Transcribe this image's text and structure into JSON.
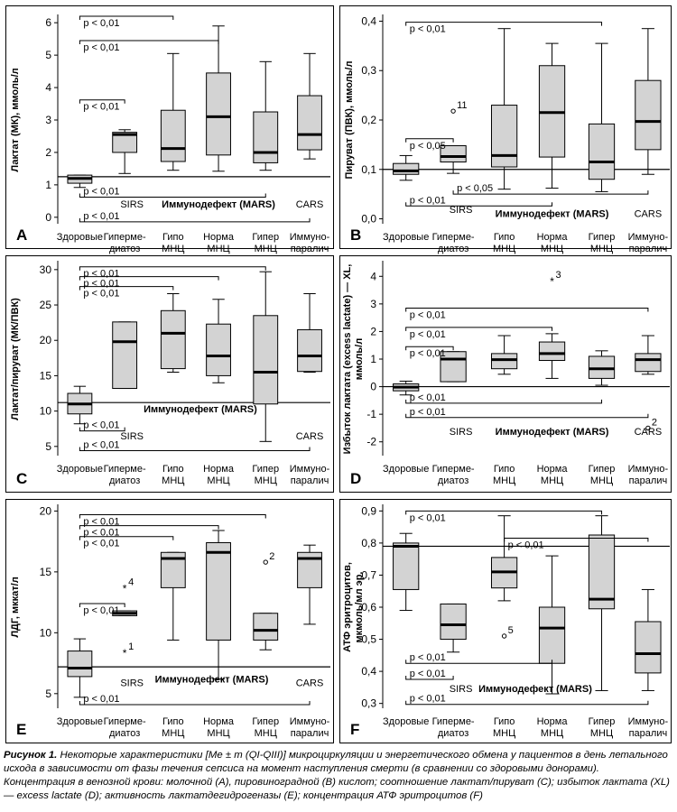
{
  "colors": {
    "box_fill": "#d3d3d3",
    "stroke": "#000000",
    "background": "#ffffff"
  },
  "caption": {
    "title": "Рисунок 1.",
    "text": "Некоторые характеристики [Me ± m (QI-QIII)] микроциркуляции и энергетического обмена у пациентов в день летального исхода в зависимости от фазы течения сепсиса на момент наступления смерти (в сравнении со здоровыми донорами). Концентрация в венозной крови: молочной (А), пировиноградной (В) кислот; соотношение лактат/пируват (С); избыток лактата (XL) — excess lactate (D); активность лактатдегидрогеназы (E); концентрация АТФ эритроцитов (F)"
  },
  "chart_data": [
    {
      "panel": "A",
      "type": "boxplot",
      "ylabel": "Лактат (МК), ммоль/л",
      "ylim": [
        -0.2,
        6.2
      ],
      "yticks": [
        0,
        1,
        2,
        3,
        4,
        5,
        6
      ],
      "categories": [
        "Здоровые",
        "Гиперме-\nдиатоз",
        "Гипо\nМНЦ",
        "Норма\nМНЦ",
        "Гипер\nМНЦ",
        "Иммуно-\nпаралич"
      ],
      "boxes": [
        {
          "whislo": 0.92,
          "q1": 1.05,
          "med": 1.2,
          "q3": 1.3,
          "whishi": 1.3
        },
        {
          "whislo": 1.35,
          "q1": 2.0,
          "med": 2.55,
          "q3": 2.62,
          "whishi": 2.7
        },
        {
          "whislo": 1.45,
          "q1": 1.72,
          "med": 2.12,
          "q3": 3.3,
          "whishi": 5.05
        },
        {
          "whislo": 1.42,
          "q1": 1.92,
          "med": 3.1,
          "q3": 4.45,
          "whishi": 5.9
        },
        {
          "whislo": 1.45,
          "q1": 1.68,
          "med": 2.0,
          "q3": 3.25,
          "whishi": 4.8
        },
        {
          "whislo": 1.8,
          "q1": 2.08,
          "med": 2.55,
          "q3": 3.75,
          "whishi": 5.05
        }
      ],
      "reference_line": 1.25,
      "outliers": [],
      "annotations": [
        {
          "text": "p < 0,01",
          "from": 1,
          "to": 3,
          "y": 6.2,
          "tick": "down"
        },
        {
          "text": "p < 0,01",
          "from": 1,
          "to": 4,
          "y": 5.45,
          "tick": "down"
        },
        {
          "text": "p < 0,01",
          "from": 1,
          "to": 2,
          "y": 3.62,
          "tick": "down"
        },
        {
          "text": "p < 0,01",
          "from": 1,
          "to": 5,
          "y": 0.62,
          "tick": "up"
        },
        {
          "text": "p < 0,01",
          "from": 1,
          "to": 6,
          "y": -0.14,
          "tick": "up"
        }
      ],
      "group_labels": [
        {
          "text": "SIRS",
          "x": 2.15,
          "y": 0.3,
          "bold": false
        },
        {
          "text": "Иммунодефект (MARS)",
          "x": 4.0,
          "y": 0.3,
          "bold": true
        },
        {
          "text": "CARS",
          "x": 6.0,
          "y": 0.3,
          "bold": false
        }
      ]
    },
    {
      "panel": "B",
      "type": "boxplot",
      "ylabel": "Пируват (ПВК), ммоль/л",
      "ylim": [
        -0.01,
        0.41
      ],
      "yticks": [
        0.0,
        0.1,
        0.2,
        0.3,
        0.4
      ],
      "ytick_labels": [
        "0,0",
        "0,1",
        "0,2",
        "0,3",
        "0,4"
      ],
      "categories": [
        "Здоровые",
        "Гиперме-\nдиатоз",
        "Гипо\nМНЦ",
        "Норма\nМНЦ",
        "Гипер\nМНЦ",
        "Иммуно-\nпаралич"
      ],
      "boxes": [
        {
          "whislo": 0.078,
          "q1": 0.09,
          "med": 0.097,
          "q3": 0.112,
          "whishi": 0.128
        },
        {
          "whislo": 0.092,
          "q1": 0.115,
          "med": 0.126,
          "q3": 0.148,
          "whishi": 0.148
        },
        {
          "whislo": 0.06,
          "q1": 0.105,
          "med": 0.128,
          "q3": 0.23,
          "whishi": 0.385
        },
        {
          "whislo": 0.062,
          "q1": 0.125,
          "med": 0.215,
          "q3": 0.31,
          "whishi": 0.355
        },
        {
          "whislo": 0.055,
          "q1": 0.08,
          "med": 0.115,
          "q3": 0.192,
          "whishi": 0.355
        },
        {
          "whislo": 0.09,
          "q1": 0.14,
          "med": 0.197,
          "q3": 0.28,
          "whishi": 0.385
        }
      ],
      "reference_line": 0.1,
      "outliers": [
        {
          "x": 2,
          "y": 0.218,
          "label": "11",
          "marker": "o"
        }
      ],
      "annotations": [
        {
          "text": "p < 0,01",
          "from": 1,
          "to": 5,
          "y": 0.398,
          "tick": "down"
        },
        {
          "text": "p < 0,05",
          "from": 1,
          "to": 2,
          "y": 0.162,
          "tick": "down"
        },
        {
          "text": "p < 0,05",
          "from": 2,
          "to": 6,
          "y": 0.05,
          "tick": "up"
        },
        {
          "text": "p < 0,01",
          "from": 1,
          "to": 4,
          "y": 0.026,
          "tick": "up"
        }
      ],
      "group_labels": [
        {
          "text": "SIRS",
          "x": 2.15,
          "y": 0.012,
          "bold": false
        },
        {
          "text": "Иммунодефект (MARS)",
          "x": 4.0,
          "y": 0.004,
          "bold": true
        },
        {
          "text": "CARS",
          "x": 6.0,
          "y": 0.004,
          "bold": false
        }
      ]
    },
    {
      "panel": "C",
      "type": "boxplot",
      "ylabel": "Лактат/пируват (МК/ПВК)",
      "ylim": [
        3.7,
        31
      ],
      "yticks": [
        5,
        10,
        15,
        20,
        25,
        30
      ],
      "categories": [
        "Здоровые",
        "Гиперме-\nдиатоз",
        "Гипо\nМНЦ",
        "Норма\nМНЦ",
        "Гипер\nМНЦ",
        "Иммуно-\nпаралич"
      ],
      "boxes": [
        {
          "whislo": 8.2,
          "q1": 9.6,
          "med": 11.0,
          "q3": 12.5,
          "whishi": 13.5
        },
        {
          "whislo": 13.2,
          "q1": 13.2,
          "med": 19.8,
          "q3": 22.6,
          "whishi": 22.6
        },
        {
          "whislo": 15.5,
          "q1": 16.0,
          "med": 21.0,
          "q3": 24.2,
          "whishi": 26.6
        },
        {
          "whislo": 14.0,
          "q1": 15.0,
          "med": 17.8,
          "q3": 22.3,
          "whishi": 25.8
        },
        {
          "whislo": 5.7,
          "q1": 11.0,
          "med": 15.5,
          "q3": 23.5,
          "whishi": 29.7
        },
        {
          "whislo": 15.5,
          "q1": 15.6,
          "med": 17.8,
          "q3": 21.5,
          "whishi": 26.6
        }
      ],
      "reference_line": 11.2,
      "outliers": [],
      "annotations": [
        {
          "text": "p < 0,01",
          "from": 1,
          "to": 5,
          "y": 30.4,
          "tick": "down"
        },
        {
          "text": "p < 0,01",
          "from": 1,
          "to": 4,
          "y": 29.0,
          "tick": "down"
        },
        {
          "text": "p < 0,01",
          "from": 1,
          "to": 3,
          "y": 27.6,
          "tick": "down"
        },
        {
          "text": "p < 0,01",
          "from": 1,
          "to": 2,
          "y": 7.2,
          "tick": "up"
        },
        {
          "text": "p < 0,01",
          "from": 1,
          "to": 6,
          "y": 4.4,
          "tick": "up"
        }
      ],
      "group_labels": [
        {
          "text": "SIRS",
          "x": 2.15,
          "y": 6.0,
          "bold": false
        },
        {
          "text": "Иммунодефект (MARS)",
          "x": 3.6,
          "y": 9.8,
          "bold": true
        },
        {
          "text": "CARS",
          "x": 6.0,
          "y": 6.0,
          "bold": false
        }
      ]
    },
    {
      "panel": "D",
      "type": "boxplot",
      "ylabel": "Избыток лактата (excess lactate) — XL,\nммоль/л",
      "ylim": [
        -2.5,
        4.5
      ],
      "yticks": [
        -2,
        -1,
        0,
        1,
        2,
        3,
        4
      ],
      "categories": [
        "Здоровые",
        "Гиперме-\nдиатоз",
        "Гипо\nМНЦ",
        "Норма\nМНЦ",
        "Гипер\nМНЦ",
        "Иммуно-\nпаралич"
      ],
      "boxes": [
        {
          "whislo": -0.3,
          "q1": -0.15,
          "med": -0.02,
          "q3": 0.1,
          "whishi": 0.2
        },
        {
          "whislo": 0.18,
          "q1": 0.18,
          "med": 1.0,
          "q3": 1.27,
          "whishi": 1.27
        },
        {
          "whislo": 0.45,
          "q1": 0.65,
          "med": 0.98,
          "q3": 1.2,
          "whishi": 1.85
        },
        {
          "whislo": 0.3,
          "q1": 0.95,
          "med": 1.2,
          "q3": 1.62,
          "whishi": 1.92
        },
        {
          "whislo": 0.05,
          "q1": 0.3,
          "med": 0.65,
          "q3": 1.1,
          "whishi": 1.3
        },
        {
          "whislo": 0.45,
          "q1": 0.55,
          "med": 0.98,
          "q3": 1.2,
          "whishi": 1.85
        }
      ],
      "reference_line": 0,
      "outliers": [
        {
          "x": 4,
          "y": 3.85,
          "label": "3",
          "marker": "*"
        },
        {
          "x": 6,
          "y": -1.5,
          "label": "2",
          "marker": "o"
        }
      ],
      "annotations": [
        {
          "text": "p < 0,01",
          "from": 1,
          "to": 6,
          "y": 2.85,
          "tick": "down"
        },
        {
          "text": "p < 0,01",
          "from": 1,
          "to": 4,
          "y": 2.15,
          "tick": "down"
        },
        {
          "text": "p < 0,01",
          "from": 1,
          "to": 2,
          "y": 1.45,
          "tick": "down"
        },
        {
          "text": "p < 0,01",
          "from": 1,
          "to": 5,
          "y": -0.6,
          "tick": "up"
        },
        {
          "text": "p < 0,01",
          "from": 1,
          "to": 6,
          "y": -1.12,
          "tick": "up"
        }
      ],
      "group_labels": [
        {
          "text": "SIRS",
          "x": 2.15,
          "y": -1.75,
          "bold": false
        },
        {
          "text": "Иммунодефект (MARS)",
          "x": 4.0,
          "y": -1.75,
          "bold": true
        },
        {
          "text": "CARS",
          "x": 6.0,
          "y": -1.75,
          "bold": false
        }
      ]
    },
    {
      "panel": "E",
      "type": "boxplot",
      "ylabel": "ЛДГ, мккат/л",
      "ylim": [
        3.8,
        20.4
      ],
      "yticks": [
        5,
        10,
        15,
        20
      ],
      "categories": [
        "Здоровые",
        "Гиперме-\nдиатоз",
        "Гипо\nМНЦ",
        "Норма\nМНЦ",
        "Гипер\nМНЦ",
        "Иммуно-\nпаралич"
      ],
      "boxes": [
        {
          "whislo": 4.7,
          "q1": 6.4,
          "med": 7.1,
          "q3": 8.5,
          "whishi": 9.5
        },
        {
          "whislo": 11.4,
          "q1": 11.4,
          "med": 11.6,
          "q3": 11.8,
          "whishi": 11.8
        },
        {
          "whislo": 9.4,
          "q1": 13.7,
          "med": 16.1,
          "q3": 16.6,
          "whishi": 16.6
        },
        {
          "whislo": 6.2,
          "q1": 9.4,
          "med": 16.6,
          "q3": 17.4,
          "whishi": 18.4
        },
        {
          "whislo": 8.6,
          "q1": 9.4,
          "med": 10.2,
          "q3": 11.6,
          "whishi": 11.6
        },
        {
          "whislo": 10.7,
          "q1": 13.7,
          "med": 16.1,
          "q3": 16.6,
          "whishi": 17.2
        }
      ],
      "reference_line": 7.2,
      "outliers": [
        {
          "x": 2,
          "y": 13.7,
          "label": "4",
          "marker": "*"
        },
        {
          "x": 2,
          "y": 8.4,
          "label": "1",
          "marker": "*"
        },
        {
          "x": 5,
          "y": 15.8,
          "label": "2",
          "marker": "o"
        }
      ],
      "annotations": [
        {
          "text": "p < 0,01",
          "from": 1,
          "to": 5,
          "y": 19.7,
          "tick": "down"
        },
        {
          "text": "p < 0,01",
          "from": 1,
          "to": 4,
          "y": 18.8,
          "tick": "down"
        },
        {
          "text": "p < 0,01",
          "from": 1,
          "to": 3,
          "y": 17.9,
          "tick": "down"
        },
        {
          "text": "p < 0,01",
          "from": 1,
          "to": 2,
          "y": 12.4,
          "tick": "down"
        },
        {
          "text": "p < 0,01",
          "from": 1,
          "to": 6,
          "y": 4.1,
          "tick": "up"
        }
      ],
      "group_labels": [
        {
          "text": "SIRS",
          "x": 2.15,
          "y": 5.6,
          "bold": false
        },
        {
          "text": "Иммунодефект (MARS)",
          "x": 3.85,
          "y": 5.9,
          "bold": true
        },
        {
          "text": "CARS",
          "x": 6.0,
          "y": 5.6,
          "bold": false
        }
      ]
    },
    {
      "panel": "F",
      "type": "boxplot",
      "ylabel": "АТФ эритроцитов,\nмкмоль/мл эр.",
      "ylim": [
        0.285,
        0.915
      ],
      "yticks": [
        0.3,
        0.4,
        0.5,
        0.6,
        0.7,
        0.8,
        0.9
      ],
      "ytick_labels": [
        "0,3",
        "0,4",
        "0,5",
        "0,6",
        "0,7",
        "0,8",
        "0,9"
      ],
      "categories": [
        "Здоровые",
        "Гиперме-\nдиатоз",
        "Гипо\nМНЦ",
        "Норма\nМНЦ",
        "Гипер\nМНЦ",
        "Иммуно-\nпаралич"
      ],
      "boxes": [
        {
          "whislo": 0.59,
          "q1": 0.655,
          "med": 0.79,
          "q3": 0.8,
          "whishi": 0.83
        },
        {
          "whislo": 0.46,
          "q1": 0.5,
          "med": 0.545,
          "q3": 0.61,
          "whishi": 0.61
        },
        {
          "whislo": 0.62,
          "q1": 0.66,
          "med": 0.71,
          "q3": 0.755,
          "whishi": 0.885
        },
        {
          "whislo": 0.33,
          "q1": 0.425,
          "med": 0.535,
          "q3": 0.6,
          "whishi": 0.76
        },
        {
          "whislo": 0.34,
          "q1": 0.595,
          "med": 0.625,
          "q3": 0.825,
          "whishi": 0.885
        },
        {
          "whislo": 0.34,
          "q1": 0.395,
          "med": 0.455,
          "q3": 0.555,
          "whishi": 0.655
        }
      ],
      "reference_line": 0.79,
      "outliers": [
        {
          "x": 3,
          "y": 0.51,
          "label": "5",
          "marker": "o"
        }
      ],
      "annotations": [
        {
          "text": "p < 0,01",
          "from": 1,
          "to": 5,
          "y": 0.9,
          "tick": "down"
        },
        {
          "text": "p < 0,01",
          "from": 3,
          "to": 6,
          "y": 0.815,
          "tick": "down"
        },
        {
          "text": "p < 0,01",
          "from": 1,
          "to": 4,
          "y": 0.425,
          "tick": "up"
        },
        {
          "text": "p < 0,01",
          "from": 1,
          "to": 2,
          "y": 0.375,
          "tick": "up"
        },
        {
          "text": "p < 0,01",
          "from": 1,
          "to": 6,
          "y": 0.297,
          "tick": "up"
        }
      ],
      "group_labels": [
        {
          "text": "SIRS",
          "x": 2.15,
          "y": 0.335,
          "bold": false
        },
        {
          "text": "Иммунодефект (MARS)",
          "x": 3.65,
          "y": 0.335,
          "bold": true
        }
      ]
    }
  ]
}
